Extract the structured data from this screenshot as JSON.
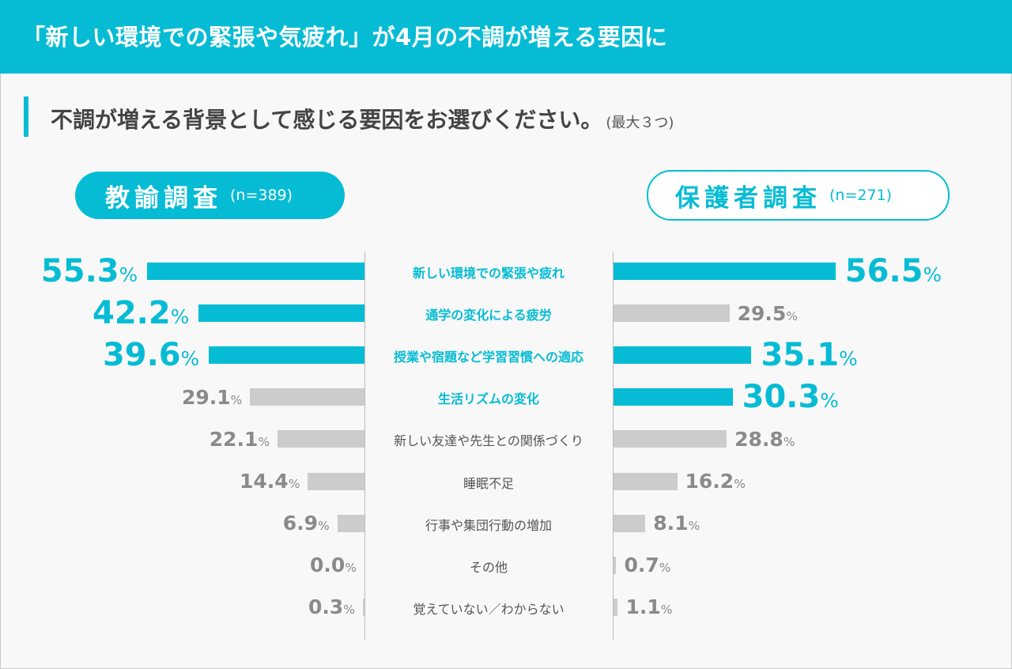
{
  "header": {
    "title": "「新しい環境での緊張や気疲れ」が4月の不調が増える要因に"
  },
  "question": {
    "text": "不調が増える背景として感じる要因をお選びください。",
    "note": "(最大３つ)"
  },
  "colors": {
    "accent": "#06bcd4",
    "muted": "#cccccc"
  },
  "chart_data": {
    "type": "bar",
    "orientation": "horizontal-butterfly",
    "unit": "%",
    "categories": [
      "新しい環境での緊張や疲れ",
      "通学の変化による疲労",
      "授業や宿題など学習習慣への適応",
      "生活リズムの変化",
      "新しい友達や先生との関係づくり",
      "睡眠不足",
      "行事や集団行動の増加",
      "その他",
      "覚えていない／わからない"
    ],
    "highlighted_categories": [
      0,
      1,
      2,
      3
    ],
    "series": [
      {
        "name": "教諭調査",
        "n_label": "(n=389)",
        "side": "left",
        "values": [
          55.3,
          42.2,
          39.6,
          29.1,
          22.1,
          14.4,
          6.9,
          0.0,
          0.3
        ],
        "highlighted": [
          0,
          1,
          2
        ]
      },
      {
        "name": "保護者調査",
        "n_label": "(n=271)",
        "side": "right",
        "values": [
          56.5,
          29.5,
          35.1,
          30.3,
          28.8,
          16.2,
          8.1,
          0.7,
          1.1
        ],
        "highlighted": [
          0,
          2,
          3
        ]
      }
    ],
    "grid": false
  }
}
